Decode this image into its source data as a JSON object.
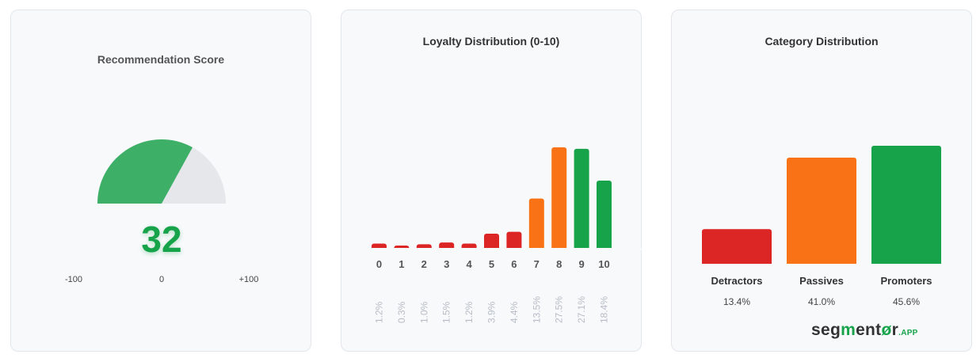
{
  "gauge_card": {
    "title": "Recommendation Score",
    "score": "32",
    "score_value": 32,
    "min_label": "-100",
    "mid_label": "0",
    "max_label": "+100",
    "colors": {
      "fill": "#3daf67",
      "track": "#e5e7eb",
      "text": "#16a34a"
    }
  },
  "chart_data": [
    {
      "type": "bar",
      "title": "Loyalty Distribution (0-10)",
      "categories": [
        "0",
        "1",
        "2",
        "3",
        "4",
        "5",
        "6",
        "7",
        "8",
        "9",
        "10"
      ],
      "values": [
        1.2,
        0.3,
        1.0,
        1.5,
        1.2,
        3.9,
        4.4,
        13.5,
        27.5,
        27.1,
        18.4
      ],
      "value_labels": [
        "1.2%",
        "0.3%",
        "1.0%",
        "1.5%",
        "1.2%",
        "3.9%",
        "4.4%",
        "13.5%",
        "27.5%",
        "27.1%",
        "18.4%"
      ],
      "colors": [
        "#dc2626",
        "#dc2626",
        "#dc2626",
        "#dc2626",
        "#dc2626",
        "#dc2626",
        "#dc2626",
        "#f97316",
        "#f97316",
        "#16a34a",
        "#16a34a"
      ],
      "grid": false
    },
    {
      "type": "bar",
      "title": "Category Distribution",
      "categories": [
        "Detractors",
        "Passives",
        "Promoters"
      ],
      "values": [
        13.4,
        41.0,
        45.6
      ],
      "value_labels": [
        "13.4%",
        "41.0%",
        "45.6%"
      ],
      "colors": [
        "#dc2626",
        "#f97316",
        "#16a34a"
      ],
      "grid": false
    }
  ],
  "logo": {
    "text": "segmentor.app"
  }
}
